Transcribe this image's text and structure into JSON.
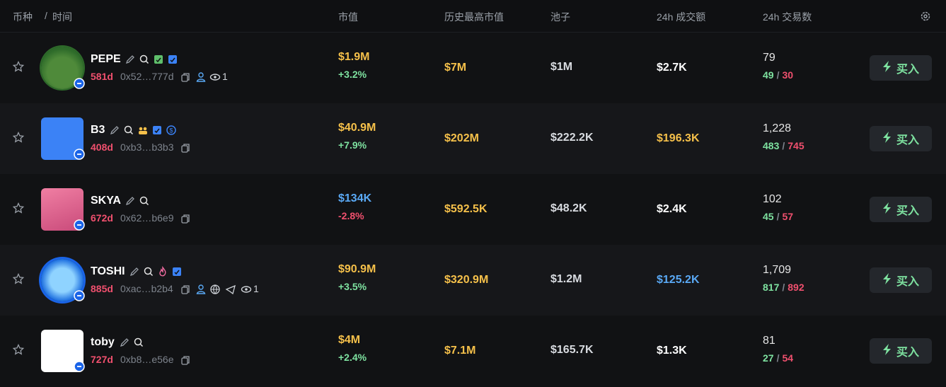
{
  "header": {
    "coin": "币种",
    "separator": "/",
    "time": "时间",
    "market_cap": "市值",
    "ath": "历史最高市值",
    "pool": "池子",
    "volume": "24h 成交额",
    "txns": "24h 交易数"
  },
  "actions": {
    "buy": "买入"
  },
  "table": {
    "rows": [
      {
        "name": "PEPE",
        "age": "581d",
        "address": "0x52…777d",
        "watchers": "1",
        "market_cap": "$1.9M",
        "market_cap_color": "#f5c04a",
        "change": "+3.2%",
        "ath": "$7M",
        "pool": "$1M",
        "volume": "$2.7K",
        "volume_color": "#ffffff",
        "txns": "79",
        "buys": "49",
        "slash": "/",
        "sells": "30"
      },
      {
        "name": "B3",
        "age": "408d",
        "address": "0xb3…b3b3",
        "market_cap": "$40.9M",
        "market_cap_color": "#f5c04a",
        "change": "+7.9%",
        "ath": "$202M",
        "pool": "$222.2K",
        "volume": "$196.3K",
        "volume_color": "#f5c04a",
        "txns": "1,228",
        "buys": "483",
        "slash": "/",
        "sells": "745"
      },
      {
        "name": "SKYA",
        "age": "672d",
        "address": "0x62…b6e9",
        "market_cap": "$134K",
        "market_cap_color": "#5aa9f5",
        "change": "-2.8%",
        "ath": "$592.5K",
        "pool": "$48.2K",
        "volume": "$2.4K",
        "volume_color": "#ffffff",
        "txns": "102",
        "buys": "45",
        "slash": "/",
        "sells": "57"
      },
      {
        "name": "TOSHI",
        "age": "885d",
        "address": "0xac…b2b4",
        "watchers": "1",
        "market_cap": "$90.9M",
        "market_cap_color": "#f5c04a",
        "change": "+3.5%",
        "ath": "$320.9M",
        "pool": "$1.2M",
        "volume": "$125.2K",
        "volume_color": "#5aa9f5",
        "txns": "1,709",
        "buys": "817",
        "slash": "/",
        "sells": "892"
      },
      {
        "name": "toby",
        "age": "727d",
        "address": "0xb8…e56e",
        "market_cap": "$4M",
        "market_cap_color": "#f5c04a",
        "change": "+2.4%",
        "ath": "$7.1M",
        "pool": "$165.7K",
        "volume": "$1.3K",
        "volume_color": "#ffffff",
        "txns": "81",
        "buys": "27",
        "slash": "/",
        "sells": "54"
      }
    ]
  }
}
